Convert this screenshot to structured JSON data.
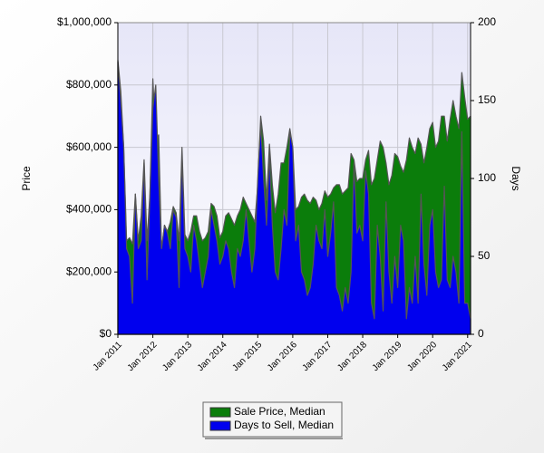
{
  "chart_data": {
    "type": "area",
    "categories": [
      "Jan 2011",
      null,
      null,
      null,
      null,
      null,
      null,
      null,
      null,
      null,
      null,
      null,
      "Jan 2012",
      null,
      null,
      null,
      null,
      null,
      null,
      null,
      null,
      null,
      null,
      null,
      "Jan 2013",
      null,
      null,
      null,
      null,
      null,
      null,
      null,
      null,
      null,
      null,
      null,
      "Jan 2014",
      null,
      null,
      null,
      null,
      null,
      null,
      null,
      null,
      null,
      null,
      null,
      "Jan 2015",
      null,
      null,
      null,
      null,
      null,
      null,
      null,
      null,
      null,
      null,
      null,
      "Jan 2016",
      null,
      null,
      null,
      null,
      null,
      null,
      null,
      null,
      null,
      null,
      null,
      "Jan 2017",
      null,
      null,
      null,
      null,
      null,
      null,
      null,
      null,
      null,
      null,
      null,
      "Jan 2018",
      null,
      null,
      null,
      null,
      null,
      null,
      null,
      null,
      null,
      null,
      null,
      "Jan 2019",
      null,
      null,
      null,
      null,
      null,
      null,
      null,
      null,
      null,
      null,
      null,
      "Jan 2020",
      null,
      null,
      null,
      null,
      null,
      null,
      null,
      null,
      null,
      null,
      null,
      "Jan 2021",
      null
    ],
    "series": [
      {
        "name": "Sale Price, Median",
        "color": "#0b7d0b",
        "values": [
          880000,
          780000,
          600000,
          300000,
          310000,
          290000,
          450000,
          300000,
          380000,
          560000,
          300000,
          450000,
          820000,
          620000,
          640000,
          270000,
          350000,
          330000,
          360000,
          410000,
          390000,
          300000,
          600000,
          320000,
          300000,
          330000,
          380000,
          380000,
          330000,
          300000,
          310000,
          330000,
          420000,
          410000,
          380000,
          310000,
          330000,
          380000,
          390000,
          370000,
          350000,
          380000,
          400000,
          440000,
          420000,
          400000,
          380000,
          360000,
          480000,
          700000,
          620000,
          430000,
          610000,
          480000,
          390000,
          450000,
          550000,
          550000,
          600000,
          660000,
          600000,
          400000,
          410000,
          440000,
          450000,
          430000,
          420000,
          440000,
          430000,
          400000,
          420000,
          460000,
          440000,
          450000,
          470000,
          480000,
          480000,
          450000,
          460000,
          470000,
          580000,
          560000,
          490000,
          500000,
          500000,
          560000,
          590000,
          480000,
          500000,
          560000,
          620000,
          600000,
          550000,
          480000,
          510000,
          580000,
          570000,
          540000,
          520000,
          560000,
          630000,
          600000,
          580000,
          630000,
          610000,
          550000,
          600000,
          660000,
          680000,
          600000,
          620000,
          700000,
          700000,
          620000,
          690000,
          750000,
          700000,
          660000,
          840000,
          760000,
          690000,
          700000
        ]
      },
      {
        "name": "Days to Sell, Median",
        "color": "#0000ee",
        "axis": "y2",
        "values": [
          175,
          150,
          120,
          55,
          50,
          20,
          90,
          55,
          60,
          110,
          35,
          90,
          145,
          160,
          100,
          55,
          70,
          65,
          55,
          80,
          75,
          30,
          115,
          55,
          50,
          40,
          70,
          60,
          45,
          30,
          40,
          50,
          80,
          70,
          60,
          45,
          50,
          60,
          55,
          40,
          30,
          55,
          50,
          60,
          80,
          60,
          40,
          55,
          100,
          135,
          100,
          70,
          115,
          70,
          40,
          35,
          55,
          80,
          70,
          130,
          120,
          60,
          70,
          40,
          35,
          25,
          30,
          45,
          70,
          60,
          55,
          80,
          50,
          65,
          85,
          30,
          25,
          15,
          30,
          20,
          40,
          110,
          65,
          70,
          60,
          105,
          90,
          20,
          10,
          70,
          50,
          15,
          85,
          40,
          20,
          50,
          30,
          70,
          60,
          10,
          30,
          20,
          50,
          20,
          90,
          45,
          25,
          70,
          80,
          40,
          30,
          35,
          95,
          35,
          30,
          50,
          40,
          20,
          130,
          20,
          20,
          10
        ]
      }
    ],
    "ylabel": "Price",
    "y2label": "Days",
    "ylim": [
      0,
      1000000
    ],
    "yticks": [
      {
        "value": 0,
        "label": "$0"
      },
      {
        "value": 200000,
        "label": "$200,000"
      },
      {
        "value": 400000,
        "label": "$400,000"
      },
      {
        "value": 600000,
        "label": "$600,000"
      },
      {
        "value": 800000,
        "label": "$800,000"
      },
      {
        "value": 1000000,
        "label": "$1,000,000"
      }
    ],
    "y2lim": [
      0,
      200
    ],
    "y2ticks": [
      0,
      50,
      100,
      150,
      200
    ],
    "grid": true,
    "legend": "bottom"
  }
}
